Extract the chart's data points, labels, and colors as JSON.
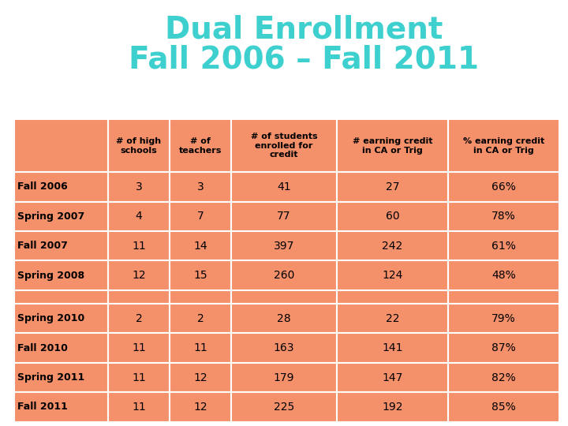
{
  "title_line1": "Dual Enrollment",
  "title_line2": "Fall 2006 – Fall 2011",
  "title_color": "#3ECFCF",
  "title_fontsize": 28,
  "bg_color": "#FFFFFF",
  "cell_color": "#F4906A",
  "border_color": "#FFFFFF",
  "text_color": "#000000",
  "col_headers": [
    "# of high\nschools",
    "# of\nteachers",
    "# of students\nenrolled for\ncredit",
    "# earning credit\nin CA or Trig",
    "% earning credit\nin CA or Trig"
  ],
  "row_labels": [
    "Fall 2006",
    "Spring 2007",
    "Fall 2007",
    "Spring 2008",
    "",
    "Spring 2010",
    "Fall 2010",
    "Spring 2011",
    "Fall 2011"
  ],
  "table_data": [
    [
      "3",
      "3",
      "41",
      "27",
      "66%"
    ],
    [
      "4",
      "7",
      "77",
      "60",
      "78%"
    ],
    [
      "11",
      "14",
      "397",
      "242",
      "61%"
    ],
    [
      "12",
      "15",
      "260",
      "124",
      "48%"
    ],
    [
      "",
      "",
      "",
      "",
      ""
    ],
    [
      "2",
      "2",
      "28",
      "22",
      "79%"
    ],
    [
      "11",
      "11",
      "163",
      "141",
      "87%"
    ],
    [
      "11",
      "12",
      "179",
      "147",
      "82%"
    ],
    [
      "11",
      "12",
      "225",
      "192",
      "85%"
    ]
  ]
}
